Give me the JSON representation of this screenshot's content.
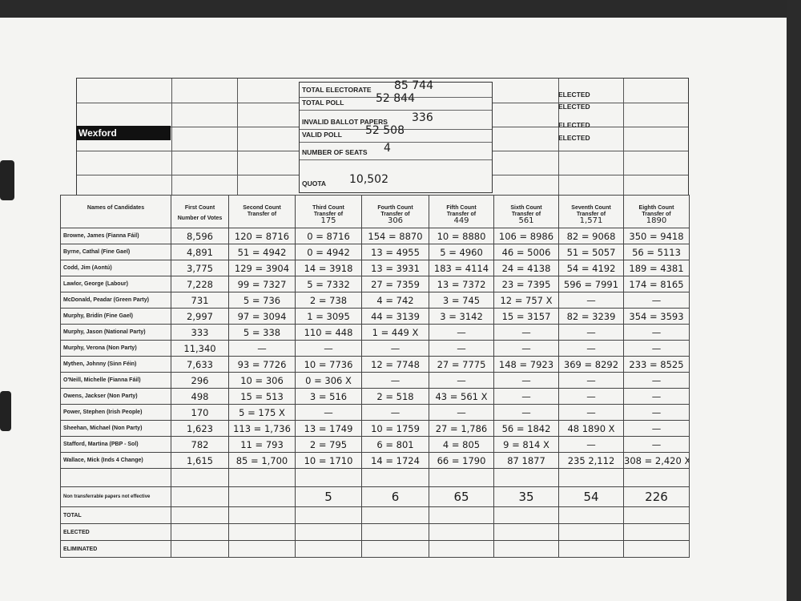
{
  "header": {
    "constituency": "Wexford",
    "fields": [
      {
        "label": "TOTAL ELECTORATE",
        "value": "85 744"
      },
      {
        "label": "TOTAL POLL",
        "value": "52 844"
      },
      {
        "label": "INVALID BALLOT PAPERS",
        "value": "336"
      },
      {
        "label": "VALID POLL",
        "value": "52 508"
      },
      {
        "label": "NUMBER OF SEATS",
        "value": "4"
      },
      {
        "label": "QUOTA",
        "value": "10,502"
      }
    ],
    "elected_labels": [
      "ELECTED",
      "ELECTED",
      "ELECTED",
      "ELECTED"
    ]
  },
  "table": {
    "columns": [
      {
        "title": "Names of Candidates"
      },
      {
        "title": "First Count",
        "subtitle": "Number of Votes"
      },
      {
        "title": "Second Count",
        "subtitle": "Transfer of"
      },
      {
        "title": "Third Count",
        "subtitle": "Transfer of",
        "note": "175"
      },
      {
        "title": "Fourth Count",
        "subtitle": "Transfer of",
        "note": "306"
      },
      {
        "title": "Fifth Count",
        "subtitle": "Transfer of",
        "note": "449"
      },
      {
        "title": "Sixth Count",
        "subtitle": "Transfer of",
        "note": "561"
      },
      {
        "title": "Seventh Count",
        "subtitle": "Transfer of",
        "note": "1,571"
      },
      {
        "title": "Eighth Count",
        "subtitle": "Transfer of",
        "note": "1890"
      }
    ],
    "rows": [
      {
        "name": "Browne, James (Fianna Fáil)",
        "cells": [
          "8,596",
          "120 = 8716",
          "0 = 8716",
          "154 = 8870",
          "10 = 8880",
          "106 = 8986",
          "82 = 9068",
          "350 = 9418"
        ]
      },
      {
        "name": "Byrne, Cathal (Fine Gael)",
        "cells": [
          "4,891",
          "51 = 4942",
          "0 = 4942",
          "13 = 4955",
          "5 = 4960",
          "46 = 5006",
          "51 = 5057",
          "56 = 5113"
        ]
      },
      {
        "name": "Codd, Jim (Aontú)",
        "cells": [
          "3,775",
          "129 = 3904",
          "14 = 3918",
          "13 = 3931",
          "183 = 4114",
          "24 = 4138",
          "54 = 4192",
          "189 = 4381"
        ]
      },
      {
        "name": "Lawlor, George (Labour)",
        "cells": [
          "7,228",
          "99 = 7327",
          "5 = 7332",
          "27 = 7359",
          "13 = 7372",
          "23 = 7395",
          "596 = 7991",
          "174 = 8165"
        ]
      },
      {
        "name": "McDonald, Peadar (Green Party)",
        "cells": [
          "731",
          "5 = 736",
          "2 = 738",
          "4 = 742",
          "3 = 745",
          "12 = 757 X",
          "—",
          "—"
        ]
      },
      {
        "name": "Murphy, Bridín (Fine Gael)",
        "cells": [
          "2,997",
          "97 = 3094",
          "1 = 3095",
          "44 = 3139",
          "3 = 3142",
          "15 = 3157",
          "82 = 3239",
          "354 = 3593"
        ]
      },
      {
        "name": "Murphy, Jason (National Party)",
        "cells": [
          "333",
          "5 = 338",
          "110 = 448",
          "1 = 449 X",
          "—",
          "—",
          "—",
          "—"
        ]
      },
      {
        "name": "Murphy, Verona (Non Party)",
        "cells": [
          "11,340",
          "—",
          "—",
          "—",
          "—",
          "—",
          "—",
          "—"
        ]
      },
      {
        "name": "Mythen, Johnny (Sinn Féin)",
        "cells": [
          "7,633",
          "93 = 7726",
          "10 = 7736",
          "12 = 7748",
          "27 = 7775",
          "148 = 7923",
          "369 = 8292",
          "233 = 8525"
        ]
      },
      {
        "name": "O'Neill, Michelle (Fianna Fáil)",
        "cells": [
          "296",
          "10 = 306",
          "0 = 306 X",
          "—",
          "—",
          "—",
          "—",
          "—"
        ]
      },
      {
        "name": "Owens, Jackser (Non Party)",
        "cells": [
          "498",
          "15 = 513",
          "3 = 516",
          "2 = 518",
          "43 = 561 X",
          "—",
          "—",
          "—"
        ]
      },
      {
        "name": "Power, Stephen (Irish People)",
        "cells": [
          "170",
          "5 = 175 X",
          "—",
          "—",
          "—",
          "—",
          "—",
          "—"
        ]
      },
      {
        "name": "Sheehan, Michael (Non Party)",
        "cells": [
          "1,623",
          "113 = 1,736",
          "13 = 1749",
          "10 = 1759",
          "27 = 1,786",
          "56 = 1842",
          "48 1890 X",
          "—"
        ]
      },
      {
        "name": "Stafford, Martina (PBP - Sol)",
        "cells": [
          "782",
          "11 = 793",
          "2 = 795",
          "6 = 801",
          "4 = 805",
          "9 = 814 X",
          "—",
          "—"
        ]
      },
      {
        "name": "Wallace, Mick (Inds 4 Change)",
        "cells": [
          "1,615",
          "85 = 1,700",
          "10 = 1710",
          "14 = 1724",
          "66 = 1790",
          "87 1877",
          "235 2,112",
          "308 = 2,420 X"
        ]
      }
    ],
    "non_transferable": {
      "label": "Non transferrable papers not effective",
      "cells": [
        "5",
        "6",
        "65",
        "35",
        "54",
        "226"
      ]
    },
    "footer_rows": [
      "TOTAL",
      "ELECTED",
      "ELIMINATED"
    ]
  }
}
